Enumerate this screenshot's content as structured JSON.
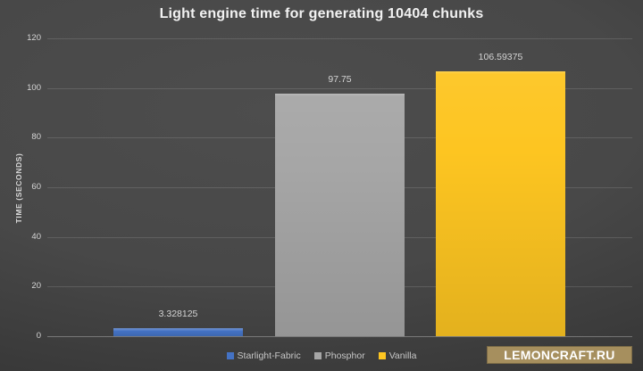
{
  "chart_data": {
    "type": "bar",
    "title": "Light engine time for generating 10404 chunks",
    "xlabel": "",
    "ylabel": "TIME (SECONDS)",
    "categories": [
      "Starlight-Fabric",
      "Phosphor",
      "Vanilla"
    ],
    "values": [
      3.328125,
      97.75,
      106.59375
    ],
    "value_labels": [
      "3.328125",
      "97.75",
      "106.59375"
    ],
    "colors": [
      "#4472c4",
      "#a6a6a6",
      "#fdc521"
    ],
    "ylim": [
      0,
      120
    ],
    "yticks": [
      0,
      20,
      40,
      60,
      80,
      100,
      120
    ],
    "grid": true,
    "legend_position": "bottom",
    "background": "#474747"
  },
  "watermark": {
    "label": "LEMONCRAFT.RU",
    "background": "#a68f5e"
  }
}
